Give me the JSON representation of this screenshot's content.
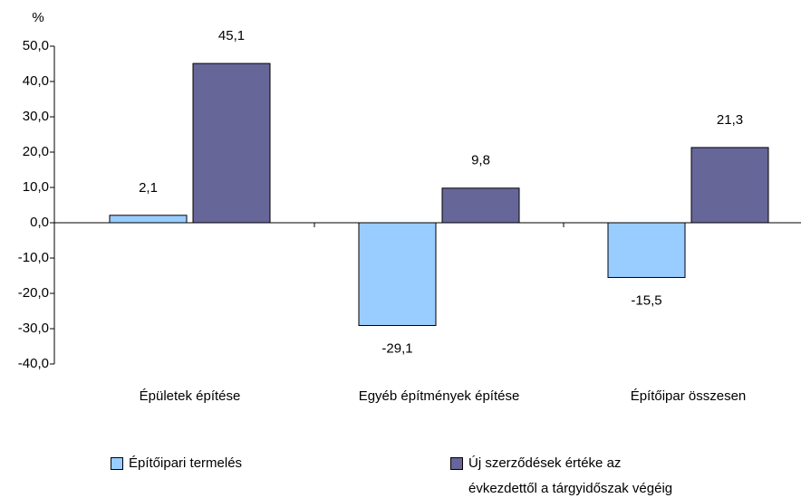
{
  "chart_data": {
    "type": "bar",
    "y_label": "%",
    "categories": [
      "Épületek építése",
      "Egyéb építmények építése",
      "Építőipar összesen"
    ],
    "series": [
      {
        "name": "Építőipari termelés",
        "color": "#99ccff",
        "values": [
          2.1,
          -29.1,
          -15.5
        ],
        "value_labels": [
          "2,1",
          "-29,1",
          "-15,5"
        ]
      },
      {
        "name": "Új szerződések értéke az évkezdettől a tárgyidőszak végéig",
        "color": "#666699",
        "values": [
          45.1,
          9.8,
          21.3
        ],
        "value_labels": [
          "45,1",
          "9,8",
          "21,3"
        ]
      }
    ],
    "ylim": [
      -40,
      50
    ],
    "yticks": [
      {
        "value": -40,
        "label": "-40,0"
      },
      {
        "value": -30,
        "label": "-30,0"
      },
      {
        "value": -20,
        "label": "-20,0"
      },
      {
        "value": -10,
        "label": "-10,0"
      },
      {
        "value": 0,
        "label": "0,0"
      },
      {
        "value": 10,
        "label": "10,0"
      },
      {
        "value": 20,
        "label": "20,0"
      },
      {
        "value": 30,
        "label": "30,0"
      },
      {
        "value": 40,
        "label": "40,0"
      },
      {
        "value": 50,
        "label": "50,0"
      }
    ],
    "grid": false,
    "legend": "bottom"
  }
}
